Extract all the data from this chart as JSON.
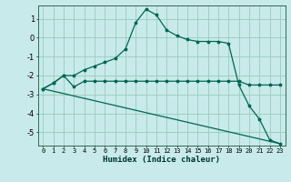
{
  "xlabel": "Humidex (Indice chaleur)",
  "bg_color": "#c8eaea",
  "grid_color": "#99ccbb",
  "line_color": "#006655",
  "xlim": [
    -0.5,
    23.5
  ],
  "ylim": [
    -5.7,
    1.7
  ],
  "xticks": [
    0,
    1,
    2,
    3,
    4,
    5,
    6,
    7,
    8,
    9,
    10,
    11,
    12,
    13,
    14,
    15,
    16,
    17,
    18,
    19,
    20,
    21,
    22,
    23
  ],
  "yticks": [
    1,
    0,
    -1,
    -2,
    -3,
    -4,
    -5
  ],
  "line1_x": [
    0,
    1,
    2,
    3,
    4,
    5,
    6,
    7,
    8,
    9,
    10,
    11,
    12,
    13,
    14,
    15,
    16,
    17,
    18,
    19,
    20,
    21,
    22,
    23
  ],
  "line1_y": [
    -2.7,
    -2.4,
    -2.0,
    -2.0,
    -1.7,
    -1.5,
    -1.3,
    -1.1,
    -0.6,
    0.8,
    1.5,
    1.2,
    0.4,
    0.1,
    -0.1,
    -0.2,
    -0.2,
    -0.2,
    -0.3,
    -2.5,
    -3.6,
    -4.3,
    -5.4,
    -5.6
  ],
  "line2_x": [
    0,
    1,
    2,
    3,
    4,
    5,
    6,
    7,
    8,
    9,
    10,
    11,
    12,
    13,
    14,
    15,
    16,
    17,
    18,
    19,
    20,
    21,
    22,
    23
  ],
  "line2_y": [
    -2.7,
    -2.4,
    -2.0,
    -2.6,
    -2.3,
    -2.3,
    -2.3,
    -2.3,
    -2.3,
    -2.3,
    -2.3,
    -2.3,
    -2.3,
    -2.3,
    -2.3,
    -2.3,
    -2.3,
    -2.3,
    -2.3,
    -2.3,
    -2.5,
    -2.5,
    -2.5,
    -2.5
  ],
  "line3_x": [
    0,
    23
  ],
  "line3_y": [
    -2.7,
    -5.6
  ]
}
